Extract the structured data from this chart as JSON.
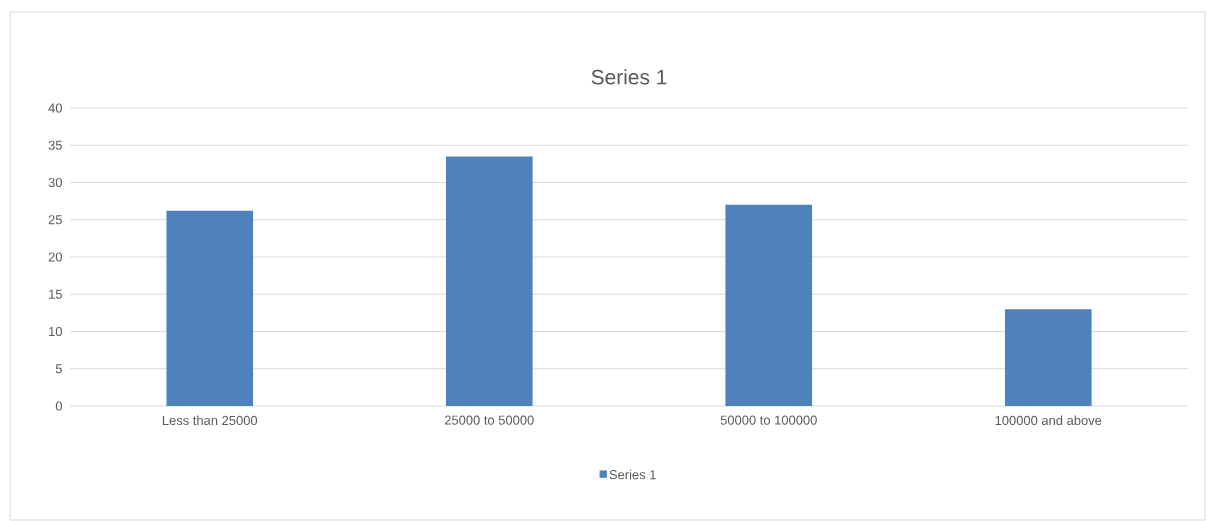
{
  "chart_data": {
    "type": "bar",
    "title": "Series 1",
    "categories": [
      "Less than 25000",
      "25000 to 50000",
      "50000 to 100000",
      "100000 and above"
    ],
    "series": [
      {
        "name": "Series 1",
        "color": "#4f81bd",
        "values": [
          26.2,
          33.5,
          27.0,
          13.0
        ]
      }
    ],
    "ylim": [
      0,
      40
    ],
    "yticks": [
      0,
      5,
      10,
      15,
      20,
      25,
      30,
      35,
      40
    ],
    "grid": "y",
    "legend": "bottom"
  }
}
